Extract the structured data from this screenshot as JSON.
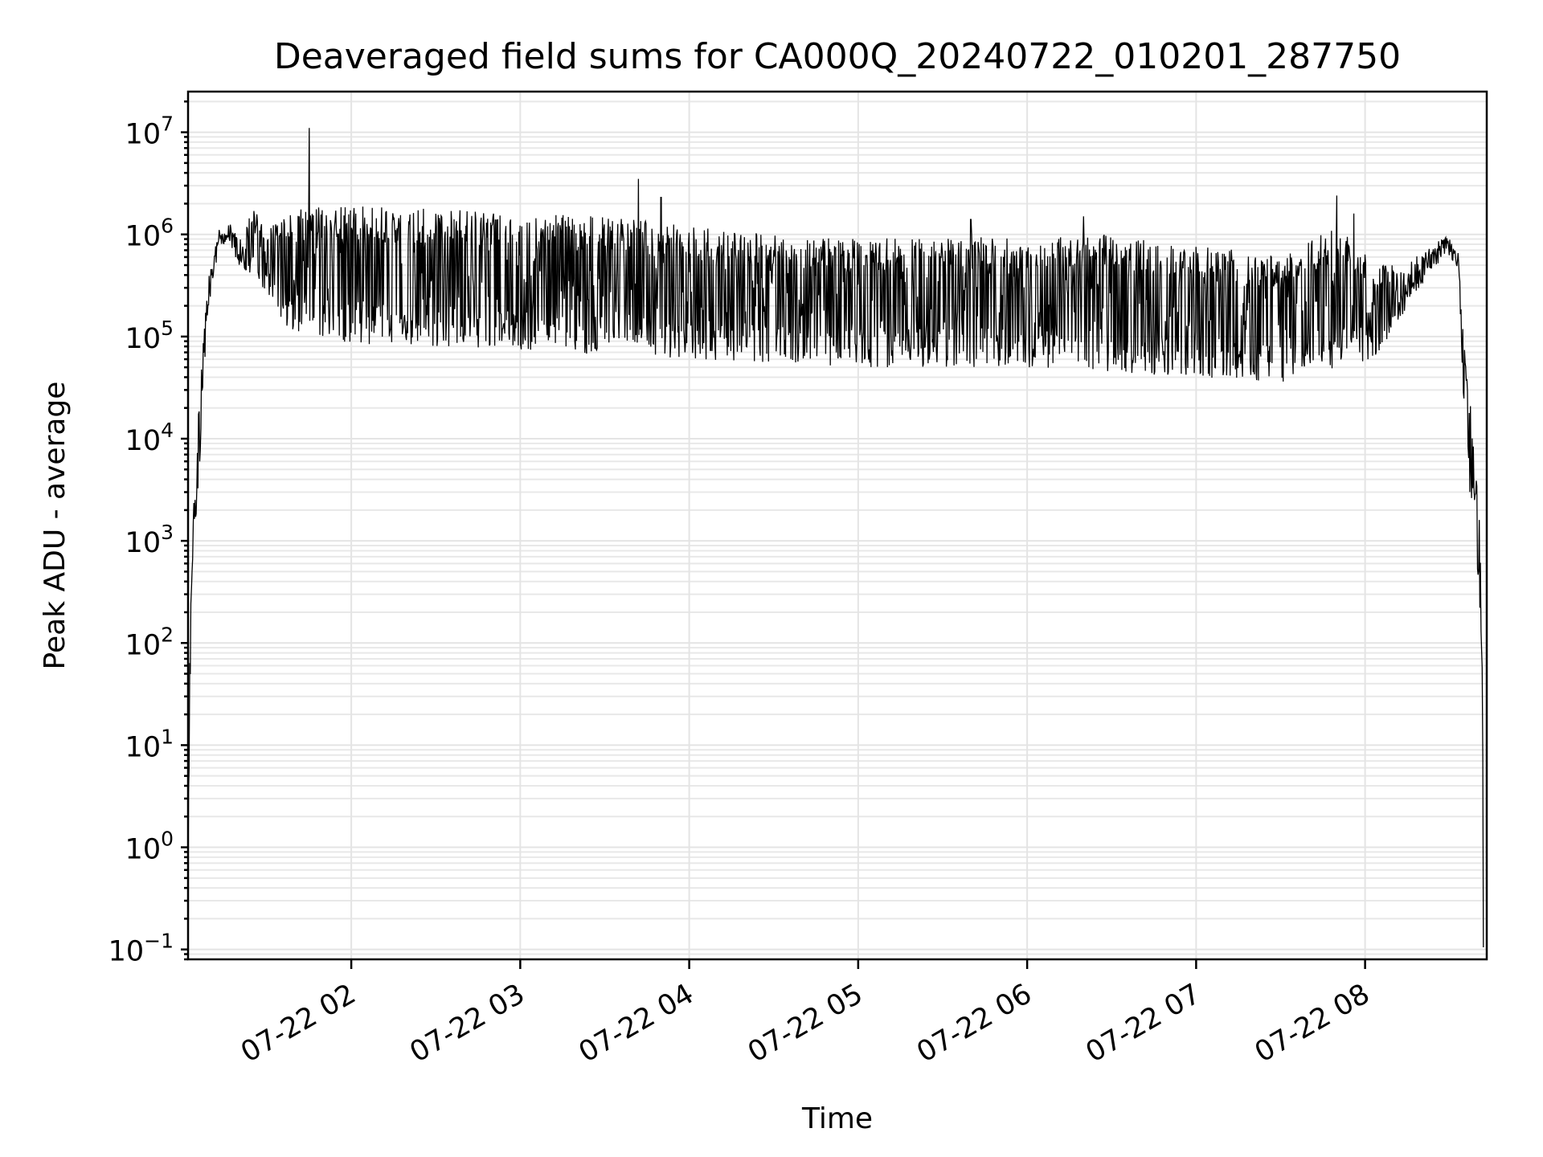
{
  "chart_data": {
    "type": "line",
    "title": "Deaveraged field sums for CA000Q_20240722_010201_287750",
    "xlabel": "Time",
    "ylabel": "Peak ADU - average",
    "y_scale": "log",
    "ylim": [
      0.08,
      25000000
    ],
    "y_ticks": [
      {
        "value": 0.1,
        "base": "10",
        "exp": "−1"
      },
      {
        "value": 1,
        "base": "10",
        "exp": "0"
      },
      {
        "value": 10,
        "base": "10",
        "exp": "1"
      },
      {
        "value": 100,
        "base": "10",
        "exp": "2"
      },
      {
        "value": 1000,
        "base": "10",
        "exp": "3"
      },
      {
        "value": 10000,
        "base": "10",
        "exp": "4"
      },
      {
        "value": 100000,
        "base": "10",
        "exp": "5"
      },
      {
        "value": 1000000,
        "base": "10",
        "exp": "6"
      },
      {
        "value": 10000000,
        "base": "10",
        "exp": "7"
      }
    ],
    "x_ticks": [
      "07-22 02",
      "07-22 03",
      "07-22 04",
      "07-22 05",
      "07-22 06",
      "07-22 07",
      "07-22 08"
    ],
    "x_tick_hours": [
      2,
      3,
      4,
      5,
      6,
      7,
      8
    ],
    "xlim_hours": [
      1.034,
      8.72
    ],
    "grid": true,
    "legend": "none",
    "series": [
      {
        "color": "#000000",
        "envelope_points": [
          {
            "t": "01:02",
            "lo": 0.08,
            "hi": 5
          },
          {
            "t": "01:03",
            "lo": 150,
            "hi": 300
          },
          {
            "t": "01:04",
            "lo": 800,
            "hi": 2500
          },
          {
            "t": "01:06",
            "lo": 4000,
            "hi": 30000
          },
          {
            "t": "01:08",
            "lo": 60000,
            "hi": 200000
          },
          {
            "t": "01:10",
            "lo": 250000,
            "hi": 500000
          },
          {
            "t": "01:13",
            "lo": 700000,
            "hi": 1200000
          },
          {
            "t": "01:16",
            "lo": 900000,
            "hi": 1400000
          },
          {
            "t": "01:20",
            "lo": 500000,
            "hi": 900000
          },
          {
            "t": "01:25",
            "lo": 400000,
            "hi": 1800000
          },
          {
            "t": "01:30",
            "lo": 250000,
            "hi": 1200000
          },
          {
            "t": "01:35",
            "lo": 150000,
            "hi": 1800000
          },
          {
            "t": "01:40",
            "lo": 100000,
            "hi": 1700000
          },
          {
            "t": "01:45",
            "lo": 90000,
            "hi": 1900000
          },
          {
            "t": "02:00",
            "lo": 85000,
            "hi": 1900000
          },
          {
            "t": "02:30",
            "lo": 80000,
            "hi": 1800000
          },
          {
            "t": "03:00",
            "lo": 75000,
            "hi": 1600000
          },
          {
            "t": "03:30",
            "lo": 65000,
            "hi": 1500000
          },
          {
            "t": "04:00",
            "lo": 60000,
            "hi": 1200000
          },
          {
            "t": "04:30",
            "lo": 55000,
            "hi": 1000000
          },
          {
            "t": "05:00",
            "lo": 50000,
            "hi": 900000
          },
          {
            "t": "05:30",
            "lo": 50000,
            "hi": 1000000
          },
          {
            "t": "06:00",
            "lo": 50000,
            "hi": 900000
          },
          {
            "t": "06:30",
            "lo": 45000,
            "hi": 1000000
          },
          {
            "t": "07:00",
            "lo": 40000,
            "hi": 800000
          },
          {
            "t": "07:30",
            "lo": 35000,
            "hi": 600000
          },
          {
            "t": "07:50",
            "lo": 50000,
            "hi": 1200000
          },
          {
            "t": "08:05",
            "lo": 60000,
            "hi": 500000
          },
          {
            "t": "08:15",
            "lo": 200000,
            "hi": 500000
          },
          {
            "t": "08:25",
            "lo": 500000,
            "hi": 900000
          },
          {
            "t": "08:30",
            "lo": 600000,
            "hi": 950000
          },
          {
            "t": "08:33",
            "lo": 400000,
            "hi": 700000
          },
          {
            "t": "08:35",
            "lo": 20000,
            "hi": 100000
          },
          {
            "t": "08:37",
            "lo": 3000,
            "hi": 30000
          },
          {
            "t": "08:39",
            "lo": 2000,
            "hi": 9000
          },
          {
            "t": "08:41",
            "lo": 100,
            "hi": 1000
          },
          {
            "t": "08:42",
            "lo": 0.08,
            "hi": 10
          }
        ],
        "spikes": [
          {
            "t": "01:45",
            "value": 11000000
          },
          {
            "t": "03:42",
            "value": 3500000
          },
          {
            "t": "03:50",
            "value": 2300000
          },
          {
            "t": "06:20",
            "value": 1500000
          },
          {
            "t": "07:50",
            "value": 2400000
          },
          {
            "t": "07:56",
            "value": 1600000
          },
          {
            "t": "05:40",
            "value": 1400000
          }
        ]
      }
    ]
  }
}
